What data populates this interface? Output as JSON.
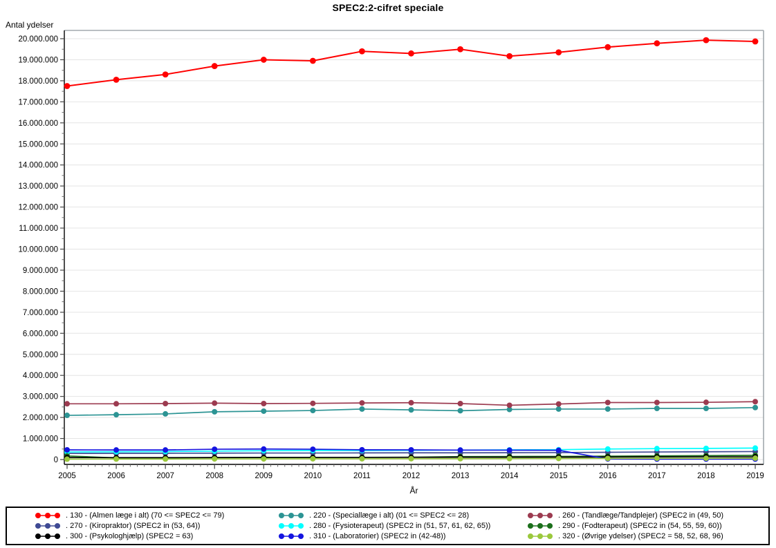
{
  "page": {
    "background": "#FFFFFF"
  },
  "chart_data": {
    "type": "line",
    "title": "SPEC2:2-cifret speciale",
    "ylabel": "Antal ydelser",
    "xlabel": "År",
    "x": [
      2005,
      2006,
      2007,
      2008,
      2009,
      2010,
      2011,
      2012,
      2013,
      2014,
      2015,
      2016,
      2017,
      2018,
      2019
    ],
    "ylim": [
      0,
      20000000
    ],
    "y_tick_step": 1000000,
    "y_minor_tick_step": 500000,
    "grid": "horizontal-only",
    "legend_position": "bottom-box",
    "gridline_color": "#E4E4E4",
    "frame_color": "#A2A8AE",
    "axis_color": "#000000",
    "series": [
      {
        "id": "130",
        "color": "#FF0000",
        "legend_label": ". 130 - (Almen læge i alt) (70 <= SPEC2 <= 79)",
        "values": [
          17750000,
          18050000,
          18300000,
          18700000,
          19000000,
          18950000,
          19400000,
          19300000,
          19500000,
          19170000,
          19350000,
          19600000,
          19780000,
          19930000,
          19870000
        ]
      },
      {
        "id": "220",
        "color": "#2C9494",
        "legend_label": ". 220 - (Speciallæge i alt) (01 <= SPEC2 <= 28)",
        "values": [
          2100000,
          2130000,
          2170000,
          2270000,
          2300000,
          2330000,
          2400000,
          2360000,
          2320000,
          2380000,
          2400000,
          2400000,
          2430000,
          2430000,
          2470000
        ]
      },
      {
        "id": "260",
        "color": "#9C3B50",
        "legend_label": ". 260 - (Tandlæge/Tandplejer) (SPEC2  in (49, 50)",
        "values": [
          2650000,
          2650000,
          2660000,
          2680000,
          2660000,
          2670000,
          2690000,
          2700000,
          2660000,
          2580000,
          2640000,
          2710000,
          2710000,
          2720000,
          2750000
        ]
      },
      {
        "id": "270",
        "color": "#3F4A94",
        "legend_label": ". 270 - (Kiropraktor) (SPEC2 in (53, 64))",
        "values": [
          290000,
          295000,
          300000,
          305000,
          310000,
          310000,
          315000,
          320000,
          320000,
          325000,
          330000,
          345000,
          360000,
          370000,
          380000
        ]
      },
      {
        "id": "280",
        "color": "#00FFFF",
        "legend_label": ". 280 - (Fysioterapeut) (SPEC2 in (51, 57, 61, 62, 65))",
        "values": [
          360000,
          370000,
          380000,
          400000,
          420000,
          430000,
          430000,
          440000,
          450000,
          460000,
          470000,
          500000,
          520000,
          530000,
          545000
        ]
      },
      {
        "id": "290",
        "color": "#1B6F1B",
        "legend_label": ". 290 - (Fodterapeut) (SPEC2 in (54, 55, 59, 60))",
        "values": [
          170000,
          80000,
          80000,
          90000,
          95000,
          100000,
          105000,
          110000,
          140000,
          145000,
          150000,
          160000,
          175000,
          185000,
          200000
        ]
      },
      {
        "id": "300",
        "color": "#000000",
        "legend_label": ". 300 - (Psykologhjælp) (SPEC2 = 63)",
        "values": [
          95000,
          90000,
          90000,
          95000,
          100000,
          100000,
          100000,
          105000,
          110000,
          110000,
          115000,
          120000,
          125000,
          130000,
          130000
        ]
      },
      {
        "id": "310",
        "color": "#1414E0",
        "legend_label": ". 310 - (Laboratorier) (SPEC2 in (42-48))",
        "values": [
          460000,
          455000,
          455000,
          490000,
          500000,
          490000,
          465000,
          460000,
          450000,
          445000,
          440000,
          30000,
          25000,
          25000,
          25000
        ]
      },
      {
        "id": "320",
        "color": "#9BC83C",
        "legend_label": ". 320 - (Øvrige ydelser) (SPEC2 = 58, 52, 68, 96)",
        "values": [
          20000,
          25000,
          25000,
          30000,
          30000,
          35000,
          35000,
          40000,
          40000,
          45000,
          50000,
          55000,
          60000,
          60000,
          65000
        ]
      }
    ]
  }
}
